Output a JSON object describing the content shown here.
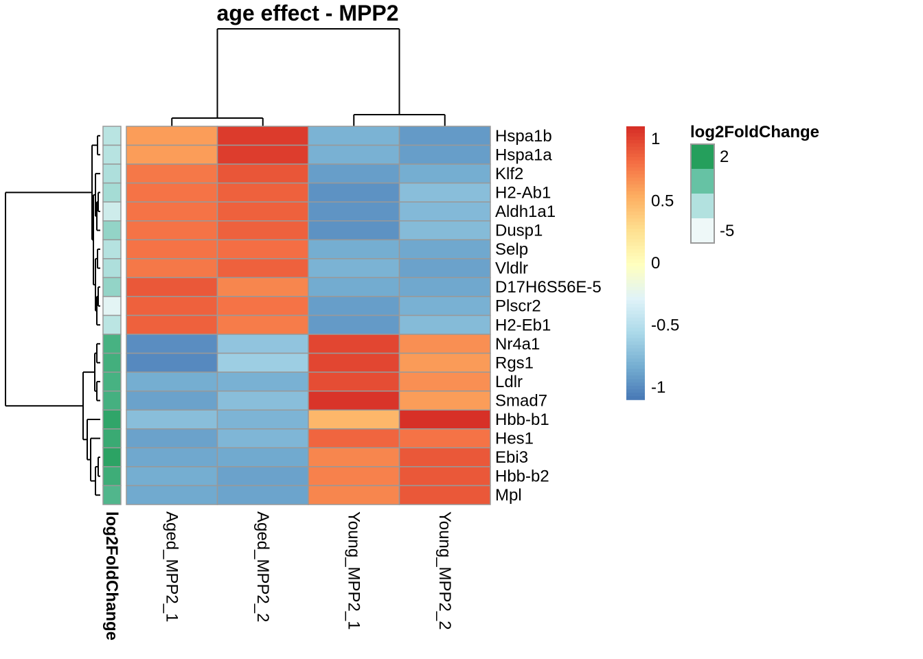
{
  "chart_data": {
    "type": "heatmap",
    "title": "age effect - MPP2",
    "columns": [
      "Aged_MPP2_1",
      "Aged_MPP2_2",
      "Young_MPP2_1",
      "Young_MPP2_2"
    ],
    "rows": [
      "Hspa1b",
      "Hspa1a",
      "Klf2",
      "H2-Ab1",
      "Aldh1a1",
      "Dusp1",
      "Selp",
      "Vldlr",
      "D17H6S56E-5",
      "Plscr2",
      "H2-Eb1",
      "Nr4a1",
      "Rgs1",
      "Ldlr",
      "Smad7",
      "Hbb-b1",
      "Hes1",
      "Ebi3",
      "Hbb-b2",
      "Mpl"
    ],
    "values": [
      [
        0.62,
        1.05,
        -0.79,
        -0.92
      ],
      [
        0.62,
        1.04,
        -0.8,
        -0.9
      ],
      [
        0.78,
        0.93,
        -0.9,
        -0.82
      ],
      [
        0.8,
        0.88,
        -0.96,
        -0.72
      ],
      [
        0.8,
        0.88,
        -0.95,
        -0.75
      ],
      [
        0.8,
        0.88,
        -0.96,
        -0.74
      ],
      [
        0.8,
        0.82,
        -0.82,
        -0.85
      ],
      [
        0.78,
        0.88,
        -0.79,
        -0.88
      ],
      [
        0.92,
        0.72,
        -0.83,
        -0.85
      ],
      [
        0.88,
        0.8,
        -0.9,
        -0.8
      ],
      [
        0.88,
        0.76,
        -0.92,
        -0.74
      ],
      [
        -0.98,
        -0.68,
        1.0,
        0.68
      ],
      [
        -1.0,
        -0.62,
        1.0,
        0.63
      ],
      [
        -0.82,
        -0.8,
        0.97,
        0.68
      ],
      [
        -0.88,
        -0.72,
        1.08,
        0.62
      ],
      [
        -0.72,
        -0.78,
        0.5,
        1.1
      ],
      [
        -0.88,
        -0.77,
        0.86,
        0.8
      ],
      [
        -0.85,
        -0.84,
        0.72,
        0.92
      ],
      [
        -0.82,
        -0.88,
        0.74,
        0.92
      ],
      [
        -0.84,
        -0.87,
        0.72,
        0.92
      ]
    ],
    "color_scale": {
      "ticks": [
        1,
        0.5,
        0,
        -0.5,
        -1
      ],
      "tick_labels": [
        "1",
        "0.5",
        "0",
        "-0.5",
        "-1"
      ],
      "range": [
        -1.1,
        1.1
      ],
      "stops": [
        "#4575B4",
        "#74ADD1",
        "#ABD9E9",
        "#E0F3F8",
        "#FFFFBF",
        "#FEE090",
        "#FDAE61",
        "#F46D43",
        "#D73027"
      ]
    },
    "annotation": {
      "name": "log2FoldChange",
      "values": [
        -3.5,
        -3.4,
        -3.0,
        -2.7,
        -4.5,
        -2.0,
        -3.3,
        -3.0,
        -2.0,
        -5.5,
        -3.6,
        1.0,
        1.2,
        1.0,
        1.1,
        2.0,
        1.6,
        2.2,
        1.4,
        0.6
      ],
      "range": [
        -6.0,
        2.5
      ],
      "legend_values": [
        2,
        -5
      ],
      "legend_labels": [
        "2",
        "-5"
      ],
      "legend_colors": [
        "#259F5C",
        "#66C2A4",
        "#B2E1DF",
        "#EEF8F8"
      ]
    },
    "col_dendrogram": {
      "merges": [
        [
          0,
          1,
          0.75
        ],
        [
          2,
          3,
          1.2
        ],
        [
          -1,
          -2,
          12.6
        ]
      ]
    },
    "row_dendrogram": {
      "description": "two main clusters: rows 0-10 and rows 11-19"
    },
    "legend_placement": "right"
  }
}
